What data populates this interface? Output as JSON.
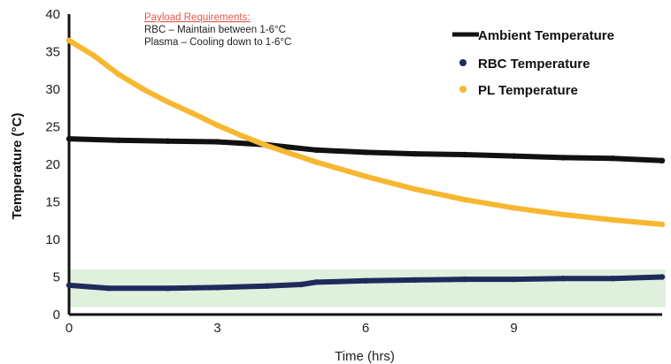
{
  "chart_data": {
    "type": "line",
    "xlabel": "Time (hrs)",
    "ylabel": "Temperature (°C)",
    "xlim": [
      0,
      12
    ],
    "ylim": [
      0,
      40
    ],
    "x_ticks": [
      0,
      3,
      6,
      9
    ],
    "y_ticks": [
      0,
      5,
      10,
      15,
      20,
      25,
      30,
      35,
      40
    ],
    "band": {
      "y_from": 1,
      "y_to": 6,
      "color": "#dff0dc"
    },
    "grid": false,
    "legend_position": "top-right",
    "annotation": {
      "title": "Payload Requirements:",
      "lines": [
        "RBC – Maintain between 1-6°C",
        "Plasma – Cooling down to 1-6°C"
      ]
    },
    "series": [
      {
        "name": "Ambient Temperature",
        "color": "#111111",
        "x": [
          0,
          1,
          2,
          3,
          4,
          5,
          6,
          7,
          8,
          9,
          10,
          11,
          12
        ],
        "y": [
          23.4,
          23.2,
          23.1,
          23.0,
          22.6,
          21.9,
          21.6,
          21.4,
          21.3,
          21.1,
          20.9,
          20.8,
          20.5
        ]
      },
      {
        "name": "RBC Temperature",
        "color": "#1f2a5c",
        "x": [
          0,
          0.8,
          2,
          3,
          4,
          4.7,
          5,
          6,
          7,
          8,
          9,
          10,
          11,
          12
        ],
        "y": [
          3.9,
          3.5,
          3.5,
          3.6,
          3.8,
          4.0,
          4.3,
          4.5,
          4.6,
          4.7,
          4.7,
          4.8,
          4.8,
          5.0
        ]
      },
      {
        "name": "PL Temperature",
        "color": "#f7b731",
        "x": [
          0,
          0.5,
          1,
          1.5,
          2,
          2.5,
          3,
          3.5,
          4,
          5,
          6,
          7,
          8,
          9,
          10,
          11,
          12
        ],
        "y": [
          36.5,
          34.5,
          32.0,
          30.0,
          28.3,
          26.8,
          25.2,
          23.8,
          22.5,
          20.3,
          18.4,
          16.7,
          15.3,
          14.2,
          13.3,
          12.6,
          12.0
        ]
      }
    ]
  }
}
